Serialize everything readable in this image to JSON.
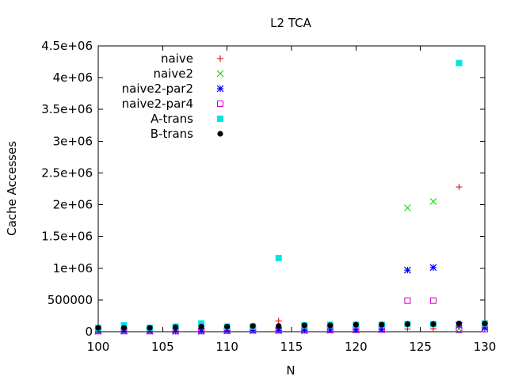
{
  "chart_data": {
    "type": "scatter",
    "title": "L2 TCA",
    "xlabel": "N",
    "ylabel": "Cache Accesses",
    "xlim": [
      100,
      130
    ],
    "ylim": [
      0,
      4500000
    ],
    "xticks": [
      100,
      105,
      110,
      115,
      120,
      125,
      130
    ],
    "yticks": [
      0,
      500000,
      1000000,
      1500000,
      2000000,
      2500000,
      3000000,
      3500000,
      4000000,
      4500000
    ],
    "xtick_labels": [
      "100",
      "105",
      "110",
      "115",
      "120",
      "125",
      "130"
    ],
    "ytick_labels": [
      "0",
      "500000",
      "1e+06",
      "1.5e+06",
      "2e+06",
      "2.5e+06",
      "3e+06",
      "3.5e+06",
      "4e+06",
      "4.5e+06"
    ],
    "legend_position": "top-left",
    "grid": false,
    "series": [
      {
        "name": "naive",
        "marker": "plus",
        "color": "#cc0000",
        "x": [
          100,
          102,
          104,
          106,
          108,
          110,
          112,
          114,
          116,
          118,
          120,
          122,
          124,
          126,
          128,
          130
        ],
        "y": [
          10000,
          10000,
          10000,
          10000,
          10000,
          15000,
          20000,
          170000,
          20000,
          25000,
          30000,
          35000,
          40000,
          45000,
          2280000,
          55000
        ]
      },
      {
        "name": "naive2",
        "marker": "cross",
        "color": "#00cc00",
        "x": [
          100,
          102,
          104,
          106,
          108,
          110,
          112,
          114,
          116,
          118,
          120,
          122,
          124,
          126,
          128,
          130
        ],
        "y": [
          10000,
          10000,
          10000,
          10000,
          10000,
          15000,
          20000,
          20000,
          20000,
          25000,
          30000,
          35000,
          1950000,
          2050000,
          45000,
          55000
        ]
      },
      {
        "name": "naive2-par2",
        "marker": "star",
        "color": "#0000ff",
        "x": [
          100,
          102,
          104,
          106,
          108,
          110,
          112,
          114,
          116,
          118,
          120,
          122,
          124,
          126,
          128,
          130
        ],
        "y": [
          10000,
          10000,
          10000,
          10000,
          10000,
          15000,
          20000,
          20000,
          20000,
          25000,
          30000,
          35000,
          970000,
          1010000,
          100000,
          60000
        ]
      },
      {
        "name": "naive2-par4",
        "marker": "open-square",
        "color": "#cc00cc",
        "x": [
          100,
          102,
          104,
          106,
          108,
          110,
          112,
          114,
          116,
          118,
          120,
          122,
          124,
          126,
          128,
          130
        ],
        "y": [
          10000,
          10000,
          10000,
          10000,
          10000,
          15000,
          20000,
          20000,
          20000,
          25000,
          30000,
          35000,
          490000,
          490000,
          30000,
          40000
        ]
      },
      {
        "name": "A-trans",
        "marker": "filled-square",
        "color": "#00e5e5",
        "x": [
          100,
          102,
          104,
          106,
          108,
          110,
          112,
          114,
          116,
          118,
          120,
          122,
          124,
          126,
          128,
          130
        ],
        "y": [
          60000,
          100000,
          60000,
          80000,
          130000,
          80000,
          80000,
          1160000,
          100000,
          110000,
          110000,
          110000,
          120000,
          120000,
          4230000,
          130000
        ]
      },
      {
        "name": "B-trans",
        "marker": "filled-circle",
        "color": "#000000",
        "x": [
          100,
          102,
          104,
          106,
          108,
          110,
          112,
          114,
          116,
          118,
          120,
          122,
          124,
          126,
          128,
          130
        ],
        "y": [
          60000,
          60000,
          60000,
          70000,
          80000,
          80000,
          90000,
          90000,
          100000,
          100000,
          110000,
          110000,
          120000,
          120000,
          130000,
          130000
        ]
      }
    ]
  }
}
